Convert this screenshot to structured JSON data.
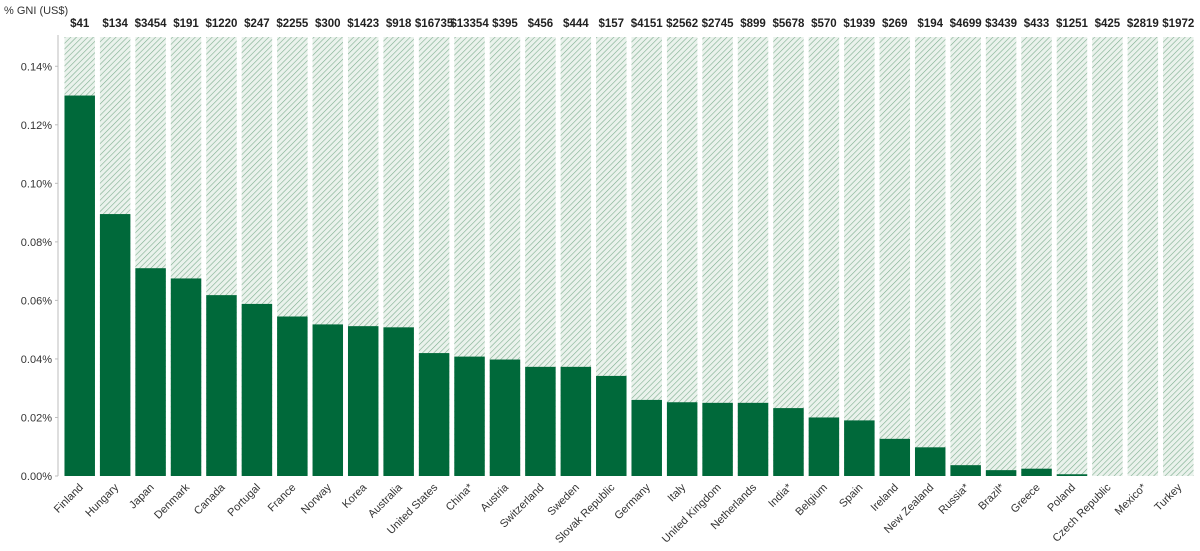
{
  "chart_data": {
    "type": "bar",
    "ylabel": "% GNI (US$)",
    "ylim": [
      0,
      0.15
    ],
    "yticks": [
      0,
      0.02,
      0.04,
      0.06,
      0.08,
      0.1,
      0.12,
      0.14
    ],
    "ytick_labels": [
      "0.00%",
      "0.02%",
      "0.04%",
      "0.06%",
      "0.08%",
      "0.10%",
      "0.12%",
      "0.14%"
    ],
    "categories": [
      "Finland",
      "Hungary",
      "Japan",
      "Denmark",
      "Canada",
      "Portugal",
      "France",
      "Norway",
      "Korea",
      "Australia",
      "United States",
      "China*",
      "Austria",
      "Switzerland",
      "Sweden",
      "Slovak Republic",
      "Germany",
      "Italy",
      "United Kingdom",
      "Netherlands",
      "India*",
      "Belgium",
      "Spain",
      "Ireland",
      "New Zealand",
      "Russia*",
      "Brazil*",
      "Greece",
      "Poland",
      "Czech Republic",
      "Mexico*",
      "Turkey"
    ],
    "values": [
      0.13,
      0.0895,
      0.071,
      0.0675,
      0.0618,
      0.0588,
      0.0545,
      0.0518,
      0.0512,
      0.0508,
      0.042,
      0.0408,
      0.0398,
      0.0373,
      0.0373,
      0.0342,
      0.026,
      0.0252,
      0.025,
      0.025,
      0.0232,
      0.02,
      0.019,
      0.0127,
      0.0098,
      0.0037,
      0.002,
      0.0025,
      0.0006,
      0.0,
      0.0,
      0.0
    ],
    "top_labels": [
      "$41",
      "$134",
      "$3454",
      "$191",
      "$1220",
      "$247",
      "$2255",
      "$300",
      "$1423",
      "$918",
      "$16735",
      "$13354",
      "$395",
      "$456",
      "$444",
      "$157",
      "$4151",
      "$2562",
      "$2745",
      "$899",
      "$5678",
      "$570",
      "$1939",
      "$269",
      "$194",
      "$4699",
      "$3439",
      "$433",
      "$1251",
      "$425",
      "$2819",
      "$1972"
    ],
    "background_bar": "full height to axis max, hatched light green",
    "grid": false,
    "legend": "none",
    "colors": {
      "bar": "#00693a",
      "hatch_line": "#7fae90",
      "hatch_bg": "#eaf2ec"
    }
  }
}
